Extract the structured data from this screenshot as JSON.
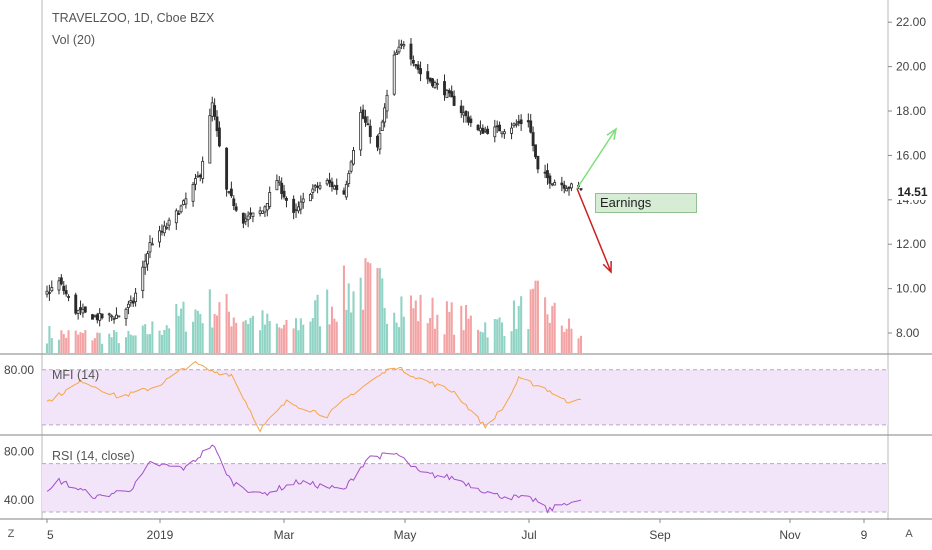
{
  "legends": {
    "symbol": "TRAVELZOO, 1D, Cboe BZX",
    "volume": "Vol (20)",
    "mfi": "MFI (14)",
    "rsi": "RSI (14, close)"
  },
  "annotation": {
    "earnings_label": "Earnings"
  },
  "last_price_label": "14.51",
  "corner_buttons": {
    "left": "Z",
    "right": "A"
  },
  "colors": {
    "up": "#53b987",
    "down": "#eb4d5c",
    "vol_up": "#8fd3c4",
    "vol_down": "#f3a3a3",
    "mfi_line": "#f5a54a",
    "rsi_line": "#a24fc9",
    "band_fill": "#f3e5f9",
    "arrow_up": "#7ee07a",
    "arrow_down": "#cc1f1f"
  },
  "chart_data": [
    {
      "type": "candlestick",
      "title": "TRAVELZOO, 1D, Cboe BZX",
      "price_axis_ticks": [
        "22.00",
        "20.00",
        "18.00",
        "16.00",
        "14.00",
        "12.00",
        "10.00",
        "8.00"
      ],
      "price_axis_range": [
        7.1,
        23.0
      ],
      "last_price": 14.51,
      "time_axis_ticks": [
        "5",
        "2019",
        "Mar",
        "May",
        "Jul",
        "Sep",
        "Nov",
        "9"
      ],
      "ohlc_anchor_points": [
        {
          "date": "2018-12-05",
          "close": 9.8
        },
        {
          "date": "2018-12-10",
          "close": 10.3
        },
        {
          "date": "2018-12-17",
          "close": 9.0
        },
        {
          "date": "2018-12-26",
          "close": 8.7
        },
        {
          "date": "2019-01-04",
          "close": 8.8
        },
        {
          "date": "2019-01-10",
          "close": 9.4
        },
        {
          "date": "2019-01-17",
          "close": 12.0
        },
        {
          "date": "2019-01-24",
          "close": 12.8
        },
        {
          "date": "2019-01-31",
          "close": 13.8
        },
        {
          "date": "2019-02-07",
          "close": 15.2
        },
        {
          "date": "2019-02-12",
          "close": 18.3
        },
        {
          "date": "2019-02-18",
          "close": 14.4
        },
        {
          "date": "2019-02-25",
          "close": 13.1
        },
        {
          "date": "2019-03-05",
          "close": 13.5
        },
        {
          "date": "2019-03-11",
          "close": 14.9
        },
        {
          "date": "2019-03-18",
          "close": 13.3
        },
        {
          "date": "2019-03-25",
          "close": 14.4
        },
        {
          "date": "2019-04-01",
          "close": 14.8
        },
        {
          "date": "2019-04-08",
          "close": 14.3
        },
        {
          "date": "2019-04-15",
          "close": 17.9
        },
        {
          "date": "2019-04-22",
          "close": 16.3
        },
        {
          "date": "2019-04-29",
          "close": 20.4
        },
        {
          "date": "2019-05-03",
          "close": 21.1
        },
        {
          "date": "2019-05-10",
          "close": 19.7
        },
        {
          "date": "2019-05-20",
          "close": 18.9
        },
        {
          "date": "2019-06-03",
          "close": 17.1
        },
        {
          "date": "2019-06-14",
          "close": 17.2
        },
        {
          "date": "2019-06-24",
          "close": 17.6
        },
        {
          "date": "2019-06-28",
          "close": 15.3
        },
        {
          "date": "2019-07-03",
          "close": 14.9
        },
        {
          "date": "2019-07-11",
          "close": 14.6
        },
        {
          "date": "2019-07-16",
          "close": 14.51
        }
      ]
    },
    {
      "type": "bar",
      "name": "Vol (20)",
      "description": "daily volume bars at base of price pane",
      "relative_level_anchors": [
        {
          "date": "2018-12-05",
          "value": 0.25
        },
        {
          "date": "2019-01-10",
          "value": 0.2
        },
        {
          "date": "2019-02-01",
          "value": 0.5
        },
        {
          "date": "2019-02-12",
          "value": 0.6
        },
        {
          "date": "2019-03-15",
          "value": 0.3
        },
        {
          "date": "2019-04-15",
          "value": 0.9
        },
        {
          "date": "2019-05-10",
          "value": 0.55
        },
        {
          "date": "2019-06-10",
          "value": 0.35
        },
        {
          "date": "2019-06-28",
          "value": 0.65
        },
        {
          "date": "2019-07-16",
          "value": 0.2
        }
      ]
    },
    {
      "type": "line",
      "name": "MFI (14)",
      "axis_ticks": [
        "80.00"
      ],
      "band": [
        20,
        80
      ],
      "y_range": [
        10,
        95
      ],
      "points": [
        {
          "date": "2018-12-05",
          "value": 45
        },
        {
          "date": "2018-12-20",
          "value": 68
        },
        {
          "date": "2019-01-04",
          "value": 50
        },
        {
          "date": "2019-01-20",
          "value": 62
        },
        {
          "date": "2019-02-04",
          "value": 88
        },
        {
          "date": "2019-02-12",
          "value": 78
        },
        {
          "date": "2019-02-20",
          "value": 75
        },
        {
          "date": "2019-03-04",
          "value": 15
        },
        {
          "date": "2019-03-15",
          "value": 45
        },
        {
          "date": "2019-04-01",
          "value": 30
        },
        {
          "date": "2019-04-12",
          "value": 55
        },
        {
          "date": "2019-04-29",
          "value": 84
        },
        {
          "date": "2019-05-10",
          "value": 70
        },
        {
          "date": "2019-05-24",
          "value": 56
        },
        {
          "date": "2019-06-06",
          "value": 18
        },
        {
          "date": "2019-06-14",
          "value": 40
        },
        {
          "date": "2019-06-20",
          "value": 70
        },
        {
          "date": "2019-07-01",
          "value": 60
        },
        {
          "date": "2019-07-10",
          "value": 45
        },
        {
          "date": "2019-07-16",
          "value": 50
        }
      ]
    },
    {
      "type": "line",
      "name": "RSI (14, close)",
      "axis_ticks": [
        "80.00",
        "40.00"
      ],
      "band": [
        30,
        70
      ],
      "y_range": [
        25,
        92
      ],
      "points": [
        {
          "date": "2018-12-05",
          "value": 45
        },
        {
          "date": "2018-12-10",
          "value": 56
        },
        {
          "date": "2018-12-26",
          "value": 42
        },
        {
          "date": "2019-01-10",
          "value": 50
        },
        {
          "date": "2019-01-17",
          "value": 70
        },
        {
          "date": "2019-02-01",
          "value": 66
        },
        {
          "date": "2019-02-12",
          "value": 86
        },
        {
          "date": "2019-02-20",
          "value": 55
        },
        {
          "date": "2019-03-04",
          "value": 44
        },
        {
          "date": "2019-03-20",
          "value": 55
        },
        {
          "date": "2019-04-08",
          "value": 48
        },
        {
          "date": "2019-04-18",
          "value": 75
        },
        {
          "date": "2019-04-30",
          "value": 78
        },
        {
          "date": "2019-05-10",
          "value": 62
        },
        {
          "date": "2019-05-24",
          "value": 58
        },
        {
          "date": "2019-06-10",
          "value": 44
        },
        {
          "date": "2019-06-27",
          "value": 40
        },
        {
          "date": "2019-07-02",
          "value": 31
        },
        {
          "date": "2019-07-10",
          "value": 38
        },
        {
          "date": "2019-07-16",
          "value": 38
        }
      ]
    }
  ]
}
